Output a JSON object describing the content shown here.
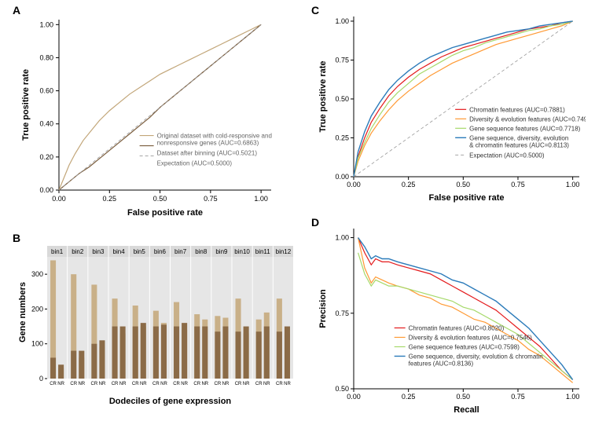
{
  "panelA": {
    "label": "A",
    "type": "line",
    "xlabel": "False positive rate",
    "ylabel": "True positive rate",
    "xlim": [
      0,
      1.05
    ],
    "ylim": [
      0,
      1.03
    ],
    "xticks": [
      0.0,
      0.25,
      0.5,
      0.75,
      1.0
    ],
    "yticks": [
      0.0,
      0.2,
      0.4,
      0.6,
      0.8,
      1.0
    ],
    "background_color": "#ffffff",
    "axis_color": "#000000",
    "axis_width": 1,
    "tick_fontsize": 9,
    "fontsize": 11,
    "series": [
      {
        "name": "Original dataset with cold-responsive and nonresponsive genes (AUC=0.6863)",
        "color": "#c2a679",
        "width": 1.2,
        "points": [
          [
            0,
            0
          ],
          [
            0.02,
            0.06
          ],
          [
            0.05,
            0.15
          ],
          [
            0.08,
            0.22
          ],
          [
            0.12,
            0.3
          ],
          [
            0.16,
            0.36
          ],
          [
            0.2,
            0.42
          ],
          [
            0.25,
            0.48
          ],
          [
            0.3,
            0.53
          ],
          [
            0.35,
            0.58
          ],
          [
            0.4,
            0.62
          ],
          [
            0.45,
            0.66
          ],
          [
            0.5,
            0.7
          ],
          [
            0.55,
            0.73
          ],
          [
            0.6,
            0.76
          ],
          [
            0.65,
            0.79
          ],
          [
            0.7,
            0.82
          ],
          [
            0.75,
            0.85
          ],
          [
            0.8,
            0.88
          ],
          [
            0.85,
            0.91
          ],
          [
            0.9,
            0.94
          ],
          [
            0.95,
            0.97
          ],
          [
            1.0,
            1.0
          ]
        ]
      },
      {
        "name": "Dataset after binning (AUC=0.5021)",
        "color": "#7a5c3c",
        "width": 1.2,
        "points": [
          [
            0,
            0
          ],
          [
            0.05,
            0.05
          ],
          [
            0.1,
            0.1
          ],
          [
            0.15,
            0.14
          ],
          [
            0.2,
            0.19
          ],
          [
            0.25,
            0.24
          ],
          [
            0.3,
            0.29
          ],
          [
            0.35,
            0.34
          ],
          [
            0.4,
            0.39
          ],
          [
            0.45,
            0.44
          ],
          [
            0.5,
            0.5
          ],
          [
            0.55,
            0.55
          ],
          [
            0.6,
            0.6
          ],
          [
            0.65,
            0.65
          ],
          [
            0.7,
            0.7
          ],
          [
            0.75,
            0.75
          ],
          [
            0.8,
            0.8
          ],
          [
            0.85,
            0.85
          ],
          [
            0.9,
            0.9
          ],
          [
            0.95,
            0.95
          ],
          [
            1.0,
            1.0
          ]
        ]
      },
      {
        "name": "Expectation (AUC=0.5000)",
        "color": "#999999",
        "width": 0.8,
        "dash": "4,3",
        "points": [
          [
            0,
            0
          ],
          [
            1,
            1
          ]
        ]
      }
    ]
  },
  "panelB": {
    "label": "B",
    "type": "bar-facet",
    "xlabel": "Dodeciles of gene expression",
    "ylabel": "Gene numbers",
    "bins": [
      "bin1",
      "bin2",
      "bin3",
      "bin4",
      "bin5",
      "bin6",
      "bin7",
      "bin8",
      "bin9",
      "bin10",
      "bin11",
      "bin12"
    ],
    "categories": [
      "CR",
      "NR"
    ],
    "facet_bg": "#e6e6e6",
    "header_bg": "#d9d9d9",
    "colors": {
      "before_CR": "#c9b088",
      "before_NR": "#c9b088",
      "after_CR": "#8b6b47",
      "after_NR": "#8b6b47"
    },
    "ymax": 350,
    "yticks": [
      0,
      100,
      200,
      300
    ],
    "data": [
      {
        "CR_before": 340,
        "CR_after": 60,
        "NR_before": 30,
        "NR_after": 40
      },
      {
        "CR_before": 300,
        "CR_after": 80,
        "NR_before": 60,
        "NR_after": 80
      },
      {
        "CR_before": 270,
        "CR_after": 100,
        "NR_before": 90,
        "NR_after": 110
      },
      {
        "CR_before": 230,
        "CR_after": 150,
        "NR_before": 130,
        "NR_after": 150
      },
      {
        "CR_before": 210,
        "CR_after": 150,
        "NR_before": 150,
        "NR_after": 160
      },
      {
        "CR_before": 195,
        "CR_after": 150,
        "NR_before": 160,
        "NR_after": 155
      },
      {
        "CR_before": 220,
        "CR_after": 150,
        "NR_before": 140,
        "NR_after": 160
      },
      {
        "CR_before": 185,
        "CR_after": 150,
        "NR_before": 170,
        "NR_after": 150
      },
      {
        "CR_before": 180,
        "CR_after": 135,
        "NR_before": 175,
        "NR_after": 150
      },
      {
        "CR_before": 230,
        "CR_after": 135,
        "NR_before": 130,
        "NR_after": 150
      },
      {
        "CR_before": 170,
        "CR_after": 135,
        "NR_before": 190,
        "NR_after": 150
      },
      {
        "CR_before": 230,
        "CR_after": 135,
        "NR_before": 130,
        "NR_after": 150
      }
    ]
  },
  "panelC": {
    "label": "C",
    "type": "line",
    "xlabel": "False positive rate",
    "ylabel": "True positive rate",
    "xlim": [
      0,
      1.03
    ],
    "ylim": [
      0,
      1.03
    ],
    "xticks": [
      0.0,
      0.25,
      0.5,
      0.75,
      1.0
    ],
    "yticks": [
      0.0,
      0.25,
      0.5,
      0.75,
      1.0
    ],
    "fontsize": 11,
    "tick_fontsize": 9,
    "series": [
      {
        "name": "Chromatin features (AUC=0.7881)",
        "color": "#e41a1c",
        "width": 1.2,
        "points": [
          [
            0,
            0
          ],
          [
            0.02,
            0.13
          ],
          [
            0.05,
            0.25
          ],
          [
            0.08,
            0.35
          ],
          [
            0.12,
            0.44
          ],
          [
            0.16,
            0.52
          ],
          [
            0.2,
            0.58
          ],
          [
            0.25,
            0.64
          ],
          [
            0.3,
            0.69
          ],
          [
            0.35,
            0.73
          ],
          [
            0.4,
            0.77
          ],
          [
            0.45,
            0.8
          ],
          [
            0.5,
            0.83
          ],
          [
            0.55,
            0.85
          ],
          [
            0.6,
            0.87
          ],
          [
            0.65,
            0.89
          ],
          [
            0.7,
            0.91
          ],
          [
            0.75,
            0.93
          ],
          [
            0.8,
            0.95
          ],
          [
            0.85,
            0.96
          ],
          [
            0.9,
            0.97
          ],
          [
            0.95,
            0.99
          ],
          [
            1.0,
            1.0
          ]
        ]
      },
      {
        "name": "Diversity & evolution features (AUC=0.7497)",
        "color": "#ff9933",
        "width": 1.2,
        "points": [
          [
            0,
            0
          ],
          [
            0.02,
            0.1
          ],
          [
            0.05,
            0.2
          ],
          [
            0.08,
            0.28
          ],
          [
            0.12,
            0.36
          ],
          [
            0.16,
            0.43
          ],
          [
            0.2,
            0.49
          ],
          [
            0.25,
            0.55
          ],
          [
            0.3,
            0.6
          ],
          [
            0.35,
            0.65
          ],
          [
            0.4,
            0.69
          ],
          [
            0.45,
            0.73
          ],
          [
            0.5,
            0.76
          ],
          [
            0.55,
            0.79
          ],
          [
            0.6,
            0.82
          ],
          [
            0.65,
            0.85
          ],
          [
            0.7,
            0.87
          ],
          [
            0.75,
            0.89
          ],
          [
            0.8,
            0.91
          ],
          [
            0.85,
            0.93
          ],
          [
            0.9,
            0.95
          ],
          [
            0.95,
            0.97
          ],
          [
            1.0,
            1.0
          ]
        ]
      },
      {
        "name": "Gene sequence features (AUC=0.7718)",
        "color": "#a6d96a",
        "width": 1.2,
        "points": [
          [
            0,
            0
          ],
          [
            0.02,
            0.12
          ],
          [
            0.05,
            0.22
          ],
          [
            0.08,
            0.31
          ],
          [
            0.12,
            0.4
          ],
          [
            0.16,
            0.48
          ],
          [
            0.2,
            0.54
          ],
          [
            0.25,
            0.6
          ],
          [
            0.3,
            0.66
          ],
          [
            0.35,
            0.7
          ],
          [
            0.4,
            0.74
          ],
          [
            0.45,
            0.78
          ],
          [
            0.5,
            0.81
          ],
          [
            0.55,
            0.83
          ],
          [
            0.6,
            0.86
          ],
          [
            0.65,
            0.88
          ],
          [
            0.7,
            0.9
          ],
          [
            0.75,
            0.92
          ],
          [
            0.8,
            0.94
          ],
          [
            0.85,
            0.95
          ],
          [
            0.9,
            0.97
          ],
          [
            0.95,
            0.98
          ],
          [
            1.0,
            1.0
          ]
        ]
      },
      {
        "name": "Gene sequence, diversity, evolution & chromatin features (AUC=0.8113)",
        "color": "#2b7bba",
        "width": 1.4,
        "points": [
          [
            0,
            0
          ],
          [
            0.02,
            0.16
          ],
          [
            0.05,
            0.29
          ],
          [
            0.08,
            0.39
          ],
          [
            0.12,
            0.48
          ],
          [
            0.16,
            0.56
          ],
          [
            0.2,
            0.62
          ],
          [
            0.25,
            0.68
          ],
          [
            0.3,
            0.73
          ],
          [
            0.35,
            0.77
          ],
          [
            0.4,
            0.8
          ],
          [
            0.45,
            0.83
          ],
          [
            0.5,
            0.85
          ],
          [
            0.55,
            0.87
          ],
          [
            0.6,
            0.89
          ],
          [
            0.65,
            0.91
          ],
          [
            0.7,
            0.93
          ],
          [
            0.75,
            0.94
          ],
          [
            0.8,
            0.95
          ],
          [
            0.85,
            0.97
          ],
          [
            0.9,
            0.98
          ],
          [
            0.95,
            0.99
          ],
          [
            1.0,
            1.0
          ]
        ]
      },
      {
        "name": "Expectation (AUC=0.5000)",
        "color": "#999999",
        "width": 0.8,
        "dash": "4,3",
        "points": [
          [
            0,
            0
          ],
          [
            1,
            1
          ]
        ]
      }
    ]
  },
  "panelD": {
    "label": "D",
    "type": "line",
    "xlabel": "Recall",
    "ylabel": "Precision",
    "xlim": [
      0,
      1.03
    ],
    "ylim": [
      0.5,
      1.03
    ],
    "xticks": [
      0.0,
      0.25,
      0.5,
      0.75,
      1.0
    ],
    "yticks": [
      0.5,
      0.75,
      1.0
    ],
    "fontsize": 11,
    "tick_fontsize": 9,
    "series": [
      {
        "name": "Chromatin features (AUC=0.8020)",
        "color": "#e41a1c",
        "width": 1.2,
        "points": [
          [
            0.02,
            1.0
          ],
          [
            0.05,
            0.95
          ],
          [
            0.08,
            0.91
          ],
          [
            0.1,
            0.93
          ],
          [
            0.13,
            0.92
          ],
          [
            0.16,
            0.92
          ],
          [
            0.2,
            0.91
          ],
          [
            0.25,
            0.9
          ],
          [
            0.3,
            0.89
          ],
          [
            0.35,
            0.88
          ],
          [
            0.4,
            0.86
          ],
          [
            0.45,
            0.84
          ],
          [
            0.5,
            0.82
          ],
          [
            0.55,
            0.8
          ],
          [
            0.6,
            0.78
          ],
          [
            0.65,
            0.76
          ],
          [
            0.7,
            0.73
          ],
          [
            0.75,
            0.7
          ],
          [
            0.8,
            0.67
          ],
          [
            0.85,
            0.64
          ],
          [
            0.9,
            0.6
          ],
          [
            0.95,
            0.56
          ],
          [
            1.0,
            0.53
          ]
        ]
      },
      {
        "name": "Diversity & evolution features (AUC=0.7546)",
        "color": "#ff9933",
        "width": 1.2,
        "points": [
          [
            0.02,
            1.0
          ],
          [
            0.05,
            0.9
          ],
          [
            0.08,
            0.85
          ],
          [
            0.1,
            0.87
          ],
          [
            0.13,
            0.86
          ],
          [
            0.16,
            0.85
          ],
          [
            0.2,
            0.84
          ],
          [
            0.25,
            0.83
          ],
          [
            0.3,
            0.81
          ],
          [
            0.35,
            0.8
          ],
          [
            0.4,
            0.78
          ],
          [
            0.45,
            0.77
          ],
          [
            0.5,
            0.75
          ],
          [
            0.55,
            0.73
          ],
          [
            0.6,
            0.72
          ],
          [
            0.65,
            0.7
          ],
          [
            0.7,
            0.68
          ],
          [
            0.75,
            0.66
          ],
          [
            0.8,
            0.63
          ],
          [
            0.85,
            0.61
          ],
          [
            0.9,
            0.58
          ],
          [
            0.95,
            0.55
          ],
          [
            1.0,
            0.52
          ]
        ]
      },
      {
        "name": "Gene sequence features (AUC=0.7598)",
        "color": "#a6d96a",
        "width": 1.2,
        "points": [
          [
            0.02,
            0.95
          ],
          [
            0.05,
            0.88
          ],
          [
            0.08,
            0.84
          ],
          [
            0.1,
            0.86
          ],
          [
            0.13,
            0.85
          ],
          [
            0.16,
            0.84
          ],
          [
            0.2,
            0.84
          ],
          [
            0.25,
            0.83
          ],
          [
            0.3,
            0.82
          ],
          [
            0.35,
            0.81
          ],
          [
            0.4,
            0.8
          ],
          [
            0.45,
            0.79
          ],
          [
            0.5,
            0.77
          ],
          [
            0.55,
            0.76
          ],
          [
            0.6,
            0.74
          ],
          [
            0.65,
            0.72
          ],
          [
            0.7,
            0.7
          ],
          [
            0.75,
            0.68
          ],
          [
            0.8,
            0.65
          ],
          [
            0.85,
            0.62
          ],
          [
            0.9,
            0.59
          ],
          [
            0.95,
            0.56
          ],
          [
            1.0,
            0.53
          ]
        ]
      },
      {
        "name": "Gene sequence, diversity, evolution & chromatin features (AUC=0.8136)",
        "color": "#2b7bba",
        "width": 1.4,
        "points": [
          [
            0.02,
            1.0
          ],
          [
            0.05,
            0.97
          ],
          [
            0.08,
            0.93
          ],
          [
            0.1,
            0.94
          ],
          [
            0.13,
            0.93
          ],
          [
            0.16,
            0.93
          ],
          [
            0.2,
            0.92
          ],
          [
            0.25,
            0.91
          ],
          [
            0.3,
            0.9
          ],
          [
            0.35,
            0.89
          ],
          [
            0.4,
            0.88
          ],
          [
            0.45,
            0.86
          ],
          [
            0.5,
            0.85
          ],
          [
            0.55,
            0.83
          ],
          [
            0.6,
            0.81
          ],
          [
            0.65,
            0.79
          ],
          [
            0.7,
            0.76
          ],
          [
            0.75,
            0.73
          ],
          [
            0.8,
            0.7
          ],
          [
            0.85,
            0.66
          ],
          [
            0.9,
            0.62
          ],
          [
            0.95,
            0.58
          ],
          [
            1.0,
            0.53
          ]
        ]
      }
    ]
  }
}
